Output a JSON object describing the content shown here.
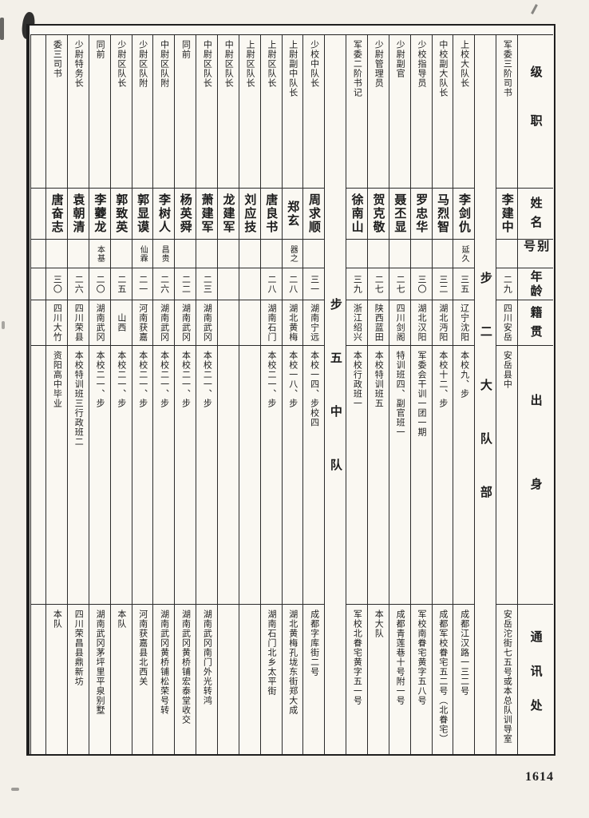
{
  "page": {
    "number": "1614"
  },
  "colors": {
    "paper": "#faf8f2",
    "ink": "#1c1c1c"
  },
  "table": {
    "headers": {
      "rank": "级职",
      "name": "姓名",
      "alias": "别号",
      "age": "年龄",
      "native": "籍贯",
      "origin": "出身",
      "address": "通讯处"
    },
    "columns": [
      {
        "type": "person",
        "rank": "军委三阶司书",
        "name": "李建中",
        "alias": "",
        "age": "二九",
        "native": "四川安岳",
        "origin": "安岳县中",
        "address": "安岳沱街七五号或本总队训导室"
      },
      {
        "type": "section",
        "label": "步二大队部"
      },
      {
        "type": "person",
        "rank": "上校大队长",
        "name": "李剑仇",
        "alias": "延久",
        "age": "三五",
        "native": "辽宁沈阳",
        "origin": "本校九、步",
        "address": "成都江汉路一三二号"
      },
      {
        "type": "person",
        "rank": "中校副大队长",
        "name": "马烈智",
        "alias": "",
        "age": "三二",
        "native": "湖北沔阳",
        "origin": "本校十二、步",
        "address": "成都军校眷宅五二号（北眷宅）"
      },
      {
        "type": "person",
        "rank": "少校指导员",
        "name": "罗忠华",
        "alias": "",
        "age": "三〇",
        "native": "湖北汉阳",
        "origin": "军委会干训一团一期",
        "address": "军校南眷宅黄字五八号"
      },
      {
        "type": "person",
        "rank": "少尉副官",
        "name": "聂丕显",
        "alias": "",
        "age": "二七",
        "native": "四川剑阁",
        "origin": "特训班四、副官班一",
        "address": "成都青莲巷十号附一号"
      },
      {
        "type": "person",
        "rank": "少尉管理员",
        "name": "贺克敬",
        "alias": "",
        "age": "二七",
        "native": "陕西蓝田",
        "origin": "本校特训班五",
        "address": "本大队"
      },
      {
        "type": "person",
        "rank": "军委二阶书记",
        "name": "徐南山",
        "alias": "",
        "age": "三九",
        "native": "浙江绍兴",
        "origin": "本校行政班一",
        "address": "军校北眷宅黄字五一号"
      },
      {
        "type": "section",
        "label": "步五中队"
      },
      {
        "type": "person",
        "rank": "少校中队长",
        "name": "周求顺",
        "alias": "",
        "age": "三一",
        "native": "湖南宁远",
        "origin": "本校一四、步校四",
        "address": "成都字库街二号"
      },
      {
        "type": "person",
        "rank": "上尉副中队长",
        "name": "郑玄",
        "alias": "器之",
        "age": "二八",
        "native": "湖北黄梅",
        "origin": "本校一八、步",
        "address": "湖北黄梅孔垅东街郑大成"
      },
      {
        "type": "person",
        "rank": "上尉区队长",
        "name": "唐良书",
        "alias": "",
        "age": "二八",
        "native": "湖南石门",
        "origin": "本校二一、步",
        "address": "湖南石门北乡太平街"
      },
      {
        "type": "person",
        "rank": "上尉区队长",
        "name": "刘应技",
        "alias": "",
        "age": "",
        "native": "",
        "origin": "",
        "address": ""
      },
      {
        "type": "person",
        "rank": "中尉区队长",
        "name": "龙建军",
        "alias": "",
        "age": "",
        "native": "",
        "origin": "",
        "address": ""
      },
      {
        "type": "person",
        "rank": "中尉区队长",
        "name": "萧建军",
        "alias": "",
        "age": "二三",
        "native": "湖南武冈",
        "origin": "本校二一、步",
        "address": "湖南武冈南门外光转鸿"
      },
      {
        "type": "person",
        "rank": "同前",
        "name": "杨英舜",
        "alias": "",
        "age": "二二",
        "native": "湖南武冈",
        "origin": "本校二一、步",
        "address": "湖南武冈黄桥铺宏泰堂收交"
      },
      {
        "type": "person",
        "rank": "中尉区队附",
        "name": "李树人",
        "alias": "昌贵",
        "age": "二六",
        "native": "湖南武冈",
        "origin": "本校二一、步",
        "address": "湖南武冈黄桥铺松荣号转"
      },
      {
        "type": "person",
        "rank": "少尉区队附",
        "name": "郭显谟",
        "alias": "仙霖",
        "age": "二一",
        "native": "河南获嘉",
        "origin": "本校二一、步",
        "address": "河南获嘉县北西关"
      },
      {
        "type": "person",
        "rank": "少尉区队长",
        "name": "郭致英",
        "alias": "",
        "age": "二五",
        "native": "山西",
        "origin": "本校二一、步",
        "address": "本队"
      },
      {
        "type": "person",
        "rank": "同前",
        "name": "李蘷龙",
        "alias": "本基",
        "age": "二〇",
        "native": "湖南武冈",
        "origin": "本校二一、步",
        "address": "湖南武冈茅坪里平泉别墅"
      },
      {
        "type": "person",
        "rank": "少尉特务长",
        "name": "袁朝清",
        "alias": "",
        "age": "二六",
        "native": "四川荣县",
        "origin": "本校特训班三行政班二",
        "address": "四川荣昌县鼎新坊"
      },
      {
        "type": "person",
        "rank": "委三司书",
        "name": "唐奋志",
        "alias": "",
        "age": "三〇",
        "native": "四川大竹",
        "origin": "资阳高中毕业",
        "address": "本队"
      },
      {
        "type": "empty"
      }
    ]
  }
}
